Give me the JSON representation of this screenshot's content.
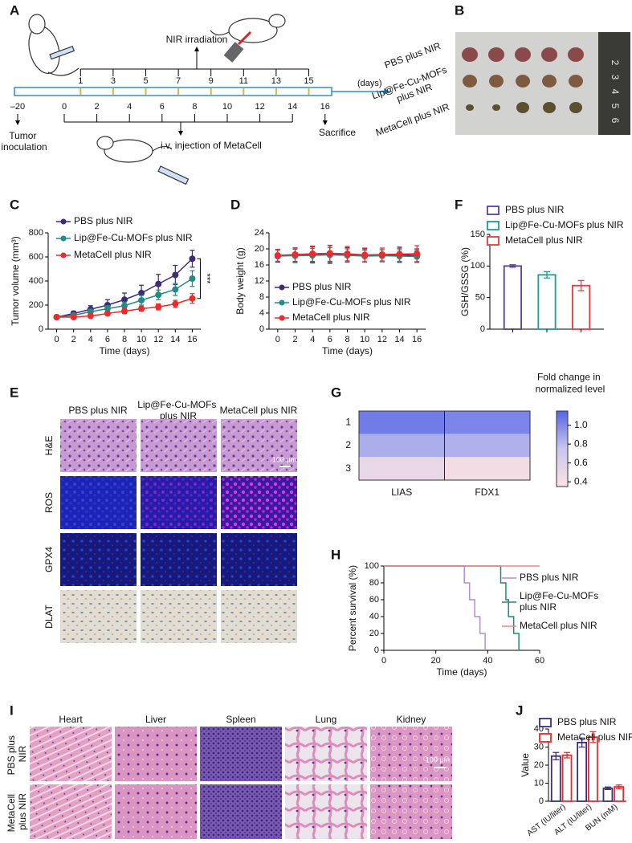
{
  "panel_labels": [
    "A",
    "B",
    "C",
    "D",
    "E",
    "F",
    "G",
    "H",
    "I",
    "J"
  ],
  "timeline": {
    "irradiation_label": "NIR irradiation",
    "unit": "(days)",
    "irradiation_days": [
      1,
      3,
      5,
      7,
      9,
      11,
      13,
      15
    ],
    "injection_days": [
      0,
      2,
      4,
      6,
      8,
      10,
      12,
      14,
      16
    ],
    "inoculation_day": "–20",
    "inoculation_label": "Tumor inoculation",
    "injection_label": "i.v. injection of MetaCell",
    "sacrifice_label": "Sacrifice"
  },
  "tumor_photo": {
    "rows": [
      "PBS plus NIR",
      "Lip@Fe-Cu-MOFs plus NIR",
      "MetaCell plus NIR"
    ],
    "ruler": [
      2,
      3,
      4,
      5,
      6
    ]
  },
  "staining": {
    "columns": [
      "PBS plus NIR",
      "Lip@Fe-Cu-MOFs plus NIR",
      "MetaCell plus NIR"
    ],
    "rows": [
      "H&E",
      "ROS",
      "GPX4",
      "DLAT"
    ],
    "scale_bar": "100 μm"
  },
  "organs": {
    "columns": [
      "Heart",
      "Liver",
      "Spleen",
      "Lung",
      "Kidney"
    ],
    "rows": [
      "PBS plus NIR",
      "MetaCell plus NIR"
    ],
    "scale_bar": "100 μm"
  },
  "chart_data": [
    {
      "type": "line",
      "xlabel": "Time (days)",
      "ylabel": "Tumor volume (mm³)",
      "x": [
        0,
        2,
        4,
        6,
        8,
        10,
        12,
        14,
        16
      ],
      "xlim": [
        -1,
        17
      ],
      "xticks": [
        0,
        2,
        4,
        6,
        8,
        10,
        12,
        14,
        16
      ],
      "ylim": [
        0,
        800
      ],
      "yticks": [
        0,
        200,
        400,
        600,
        800
      ],
      "annotation": "***",
      "series": [
        {
          "name": "PBS plus NIR",
          "color": "#3f2a78",
          "values": [
            100,
            130,
            165,
            200,
            245,
            300,
            375,
            450,
            585
          ],
          "errors": [
            10,
            20,
            30,
            45,
            55,
            65,
            80,
            80,
            70
          ]
        },
        {
          "name": "Lip@Fe-Cu-MOFs plus NIR",
          "color": "#238a86",
          "values": [
            100,
            115,
            145,
            170,
            195,
            240,
            285,
            330,
            420
          ],
          "errors": [
            10,
            15,
            20,
            25,
            30,
            40,
            40,
            50,
            65
          ]
        },
        {
          "name": "MetaCell plus NIR",
          "color": "#ee2b2b",
          "values": [
            100,
            100,
            110,
            130,
            150,
            170,
            185,
            210,
            255
          ],
          "errors": [
            10,
            10,
            15,
            15,
            20,
            20,
            25,
            30,
            40
          ]
        }
      ]
    },
    {
      "type": "line",
      "xlabel": "Time (days)",
      "ylabel": "Body weight (g)",
      "x": [
        0,
        2,
        4,
        6,
        8,
        10,
        12,
        14,
        16
      ],
      "xlim": [
        -1,
        17
      ],
      "xticks": [
        0,
        2,
        4,
        6,
        8,
        10,
        12,
        14,
        16
      ],
      "ylim": [
        0,
        24
      ],
      "yticks": [
        0,
        4,
        8,
        12,
        16,
        20,
        24
      ],
      "series": [
        {
          "name": "PBS plus NIR",
          "color": "#3f2a78",
          "values": [
            18.2,
            18.4,
            18.5,
            18.6,
            18.5,
            18.4,
            18.3,
            18.5,
            18.4
          ],
          "errors": [
            1.5,
            1.8,
            2,
            2.2,
            1.8,
            1.6,
            1.5,
            1.7,
            1.6
          ]
        },
        {
          "name": "Lip@Fe-Cu-MOFs plus NIR",
          "color": "#238a86",
          "values": [
            18.3,
            18.3,
            18.4,
            18.5,
            18.4,
            18.2,
            18.3,
            18.2,
            18.1
          ],
          "errors": [
            1.4,
            1.6,
            1.7,
            1.8,
            1.6,
            1.5,
            1.5,
            1.6,
            1.5
          ]
        },
        {
          "name": "MetaCell plus NIR",
          "color": "#ee2b2b",
          "values": [
            18.4,
            18.6,
            18.8,
            18.9,
            18.8,
            18.5,
            18.6,
            18.7,
            18.8
          ],
          "errors": [
            1.5,
            1.7,
            1.9,
            2,
            1.8,
            1.7,
            1.6,
            1.8,
            2
          ]
        }
      ]
    },
    {
      "type": "bar",
      "outline": true,
      "ylabel": "GSH/GSSG (%)",
      "ylim": [
        0,
        150
      ],
      "yticks": [
        0,
        50,
        100,
        150
      ],
      "series": [
        {
          "name": "PBS plus NIR",
          "color": "#5b3f9e",
          "values": [
            100
          ],
          "errors": [
            2
          ]
        },
        {
          "name": "Lip@Fe-Cu-MOFs plus NIR",
          "color": "#1f9c8f",
          "values": [
            86
          ],
          "errors": [
            5
          ]
        },
        {
          "name": "MetaCell plus NIR",
          "color": "#e83a3a",
          "values": [
            69
          ],
          "errors": [
            8
          ]
        }
      ]
    },
    {
      "type": "heatmap",
      "rows": [
        "1",
        "2",
        "3"
      ],
      "columns": [
        "LIAS",
        "FDX1"
      ],
      "values": [
        [
          1.05,
          1.02
        ],
        [
          0.85,
          0.84
        ],
        [
          0.5,
          0.42
        ]
      ],
      "clim": [
        0.35,
        1.15
      ],
      "cticks": [
        0.4,
        0.6,
        0.8,
        {
          "value": 1,
          "label": "1.0"
        }
      ],
      "colorbar_title": "Fold change in normalized level",
      "colormap": [
        "#fbe2e3",
        "#c9c6ee",
        "#5564e6"
      ]
    },
    {
      "type": "step",
      "xlabel": "Time (days)",
      "ylabel": "Percent survival (%)",
      "xlim": [
        0,
        60
      ],
      "xticks": [
        0,
        20,
        40,
        60
      ],
      "ylim": [
        0,
        100
      ],
      "yticks": [
        0,
        20,
        40,
        60,
        80,
        100
      ],
      "series": [
        {
          "name": "PBS plus NIR",
          "color": "#b68cd2",
          "x": [
            0,
            31,
            33,
            35,
            37,
            39
          ],
          "values": [
            100,
            80,
            60,
            40,
            20,
            0
          ]
        },
        {
          "name": "Lip@Fe-Cu-MOFs plus NIR",
          "color": "#1d8a80",
          "x": [
            0,
            45,
            47,
            48,
            50,
            52
          ],
          "values": [
            100,
            80,
            60,
            40,
            20,
            0
          ]
        },
        {
          "name": "MetaCell plus NIR",
          "color": "#f08585",
          "x": [
            0,
            60
          ],
          "values": [
            100,
            100
          ]
        }
      ]
    },
    {
      "type": "bar",
      "outline": true,
      "ylabel": "Value",
      "categories": [
        "AST (IU/liter)",
        "ALT (IU/liter)",
        "BUN (mM)"
      ],
      "ylim": [
        0,
        40
      ],
      "yticks": [
        0,
        10,
        20,
        30,
        40
      ],
      "series": [
        {
          "name": "PBS plus NIR",
          "color": "#3b2f7a",
          "values": [
            25,
            32.5,
            7.2
          ],
          "errors": [
            2,
            2.5,
            0.7
          ]
        },
        {
          "name": "MetaCell plus NIR",
          "color": "#e82a2a",
          "values": [
            25.5,
            35.5,
            8
          ],
          "errors": [
            1.5,
            3,
            1
          ]
        }
      ]
    }
  ]
}
